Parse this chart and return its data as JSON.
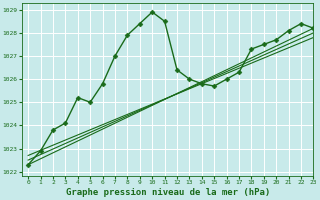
{
  "xlabel": "Graphe pression niveau de la mer (hPa)",
  "bg_color": "#c8eaea",
  "grid_color": "#ffffff",
  "line_color": "#1a6b1a",
  "marker_color": "#1a6b1a",
  "xlim": [
    -0.5,
    23
  ],
  "ylim": [
    1021.8,
    1029.3
  ],
  "yticks": [
    1022,
    1023,
    1024,
    1025,
    1026,
    1027,
    1028,
    1029
  ],
  "xticks": [
    0,
    1,
    2,
    3,
    4,
    5,
    6,
    7,
    8,
    9,
    10,
    11,
    12,
    13,
    14,
    15,
    16,
    17,
    18,
    19,
    20,
    21,
    22,
    23
  ],
  "series": [
    {
      "x": [
        0,
        1,
        2,
        3,
        4,
        5,
        6,
        7,
        8,
        9,
        10,
        11,
        12,
        13,
        14,
        15,
        16,
        17,
        18,
        19,
        20,
        21,
        22,
        23
      ],
      "y": [
        1022.3,
        1022.9,
        1023.8,
        1024.1,
        1025.2,
        1025.0,
        1025.8,
        1027.0,
        1027.9,
        1028.4,
        1028.9,
        1028.5,
        1026.4,
        1026.0,
        1025.8,
        1025.7,
        1026.0,
        1026.3,
        1027.3,
        1027.5,
        1027.7,
        1028.1,
        1028.4,
        1028.2
      ],
      "marker": "D",
      "markersize": 2.5,
      "linewidth": 1.0,
      "smooth": false
    },
    {
      "x": [
        0,
        23
      ],
      "y": [
        1022.3,
        1028.2
      ],
      "marker": null,
      "markersize": 0,
      "linewidth": 0.8,
      "smooth": false
    },
    {
      "x": [
        0,
        23
      ],
      "y": [
        1022.5,
        1028.0
      ],
      "marker": null,
      "markersize": 0,
      "linewidth": 0.8,
      "smooth": false
    },
    {
      "x": [
        0,
        23
      ],
      "y": [
        1022.7,
        1027.8
      ],
      "marker": null,
      "markersize": 0,
      "linewidth": 0.8,
      "smooth": false
    }
  ],
  "tick_fontsize": 4.5,
  "xlabel_fontsize": 6.5
}
